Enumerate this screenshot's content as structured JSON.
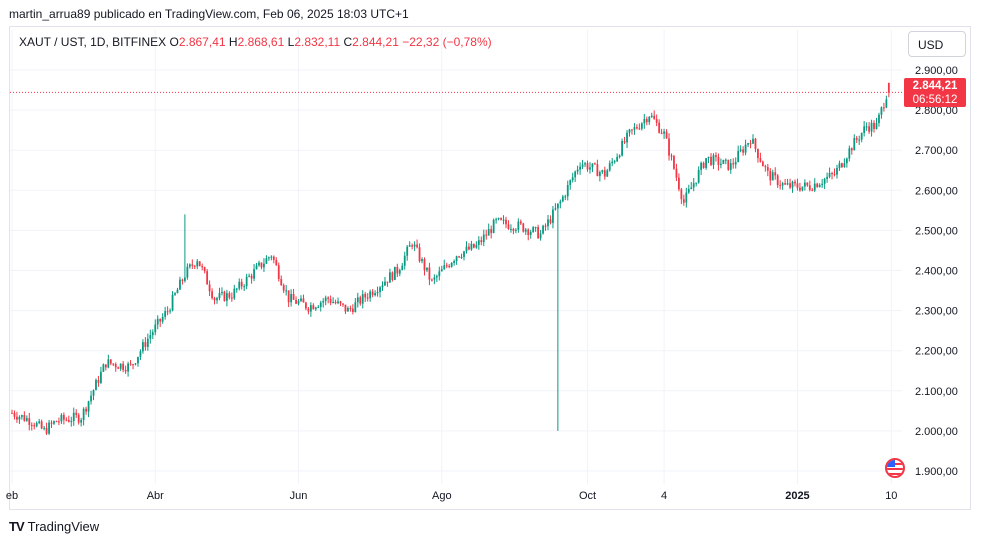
{
  "caption": "martin_arrua89 publicado en TradingView.com, Feb 06, 2025 18:03 UTC+1",
  "legend": {
    "symbol": "XAUT / UST, 1D, BITFINEX",
    "o_label": "O",
    "o_value": "2.867,41",
    "h_label": "H",
    "h_value": "2.868,61",
    "l_label": "L",
    "l_value": "2.832,11",
    "c_label": "C",
    "c_value": "2.844,21",
    "change": "−22,32 (−0,78%)"
  },
  "currency_button": "USD",
  "price_tag": {
    "price": "2.844,21",
    "countdown": "06:56:12"
  },
  "brand": "TradingView",
  "colors": {
    "up": "#089981",
    "down": "#f23645",
    "grid": "#f0f3fa",
    "current_line": "#f23645"
  },
  "chart_data": {
    "type": "candlestick",
    "title": "XAUT / UST, 1D, BITFINEX",
    "ylim": [
      1880,
      2920
    ],
    "y_ticks": [
      {
        "v": 2900,
        "label": "2.900,00"
      },
      {
        "v": 2800,
        "label": "2.800,00"
      },
      {
        "v": 2700,
        "label": "2.700,00"
      },
      {
        "v": 2600,
        "label": "2.600,00"
      },
      {
        "v": 2500,
        "label": "2.500,00"
      },
      {
        "v": 2400,
        "label": "2.400,00"
      },
      {
        "v": 2300,
        "label": "2.300,00"
      },
      {
        "v": 2200,
        "label": "2.200,00"
      },
      {
        "v": 2100,
        "label": "2.100,00"
      },
      {
        "v": 2000,
        "label": "2.000,00"
      },
      {
        "v": 1900,
        "label": "1.900,00"
      }
    ],
    "x_ticks": [
      {
        "i": 0,
        "label": "eb"
      },
      {
        "i": 58,
        "label": "Abr"
      },
      {
        "i": 116,
        "label": "Jun"
      },
      {
        "i": 174,
        "label": "Ago"
      },
      {
        "i": 233,
        "label": "Oct"
      },
      {
        "i": 264,
        "label": "4"
      },
      {
        "i": 318,
        "label": "2025"
      },
      {
        "i": 356,
        "label": "10"
      }
    ],
    "current_price": 2844.21,
    "anchors": [
      [
        0,
        2045
      ],
      [
        8,
        2025
      ],
      [
        13,
        2000
      ],
      [
        18,
        2025
      ],
      [
        28,
        2035
      ],
      [
        38,
        2170
      ],
      [
        48,
        2160
      ],
      [
        56,
        2240
      ],
      [
        63,
        2300
      ],
      [
        70,
        2390
      ],
      [
        75,
        2430
      ],
      [
        82,
        2330
      ],
      [
        89,
        2340
      ],
      [
        97,
        2390
      ],
      [
        105,
        2440
      ],
      [
        112,
        2330
      ],
      [
        120,
        2310
      ],
      [
        128,
        2330
      ],
      [
        136,
        2300
      ],
      [
        146,
        2350
      ],
      [
        156,
        2400
      ],
      [
        162,
        2470
      ],
      [
        170,
        2370
      ],
      [
        180,
        2440
      ],
      [
        188,
        2460
      ],
      [
        196,
        2520
      ],
      [
        206,
        2510
      ],
      [
        214,
        2490
      ],
      [
        222,
        2570
      ],
      [
        230,
        2670
      ],
      [
        240,
        2640
      ],
      [
        250,
        2740
      ],
      [
        258,
        2790
      ],
      [
        264,
        2740
      ],
      [
        272,
        2570
      ],
      [
        281,
        2680
      ],
      [
        291,
        2660
      ],
      [
        299,
        2730
      ],
      [
        306,
        2640
      ],
      [
        313,
        2610
      ],
      [
        323,
        2610
      ],
      [
        333,
        2640
      ],
      [
        340,
        2710
      ],
      [
        346,
        2760
      ],
      [
        350,
        2760
      ],
      [
        355,
        2860
      ]
    ],
    "spikes": [
      {
        "i": 221,
        "low": 2000
      },
      {
        "i": 70,
        "high": 2540
      }
    ]
  }
}
